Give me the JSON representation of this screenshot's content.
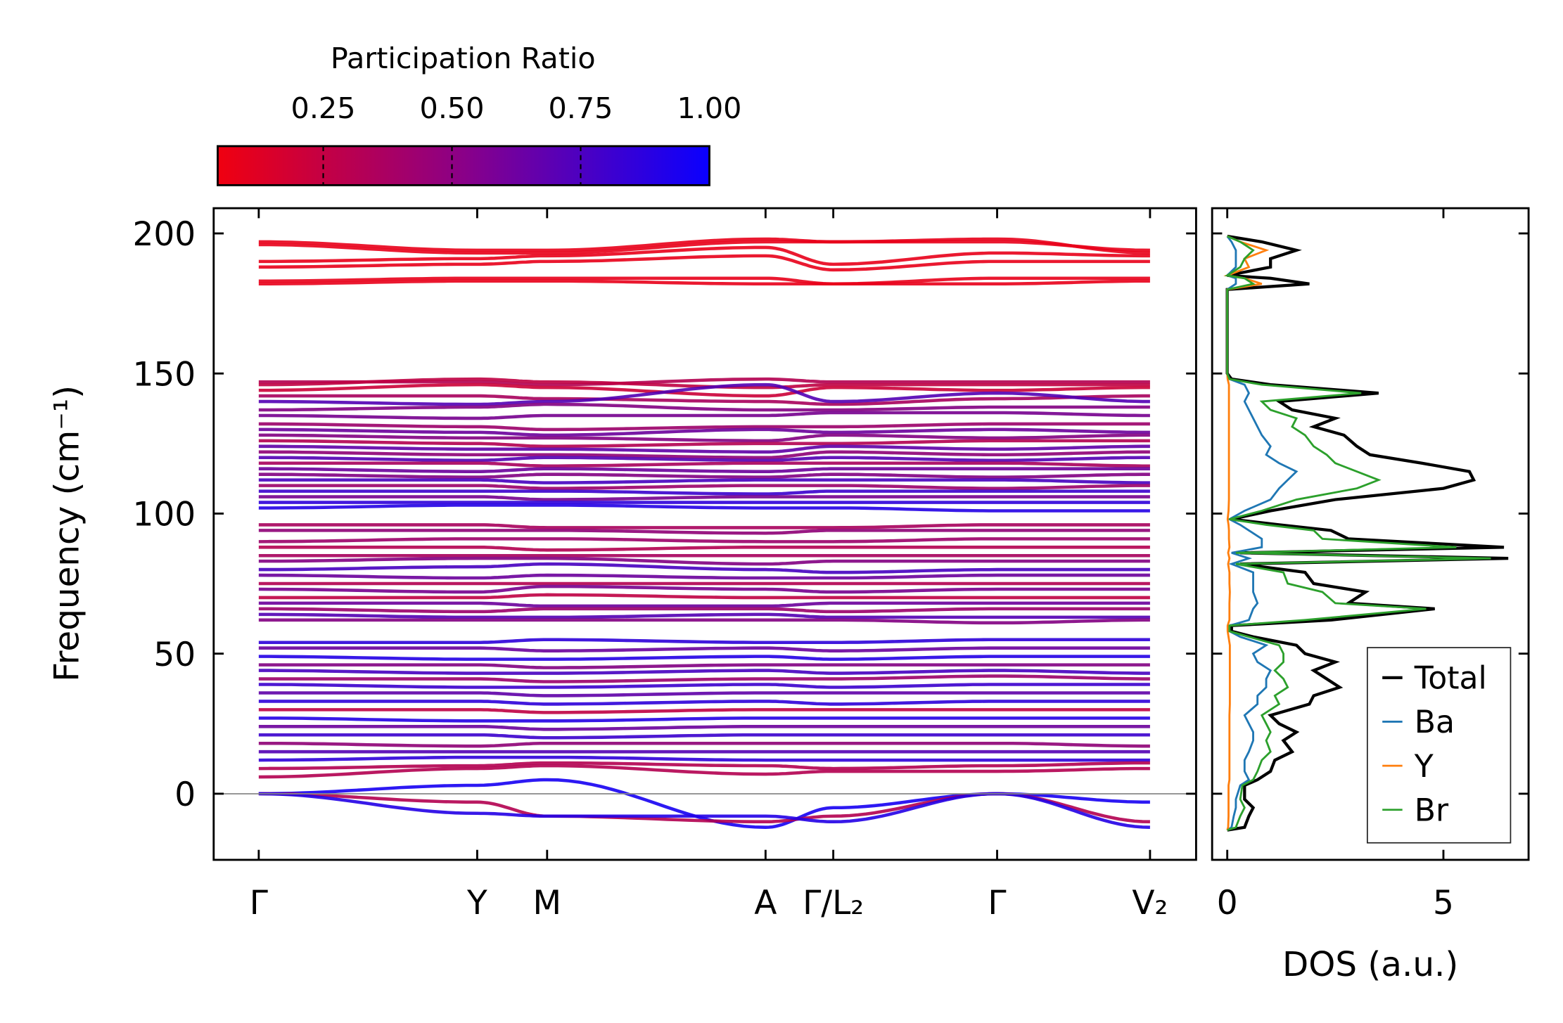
{
  "chart_data": [
    {
      "type": "line",
      "title": "",
      "xlabel": "",
      "ylabel": "Frequency (cm⁻¹)",
      "ylim": [
        -23.6,
        209
      ],
      "yticks": [
        "0",
        "50",
        "100",
        "150",
        "200"
      ],
      "ytick_values": [
        0,
        50,
        100,
        150,
        200
      ],
      "kpoints": [
        "Γ",
        "Y",
        "M",
        "A",
        "Γ/L₂",
        "Γ",
        "V₂"
      ],
      "k_distance": [
        0,
        1.0,
        1.32,
        2.32,
        2.63,
        3.38,
        4.08
      ],
      "colorbar": {
        "title": "Participation Ratio",
        "range": [
          0.045,
          1.0
        ],
        "ticks": [
          "0.25",
          "0.50",
          "0.75",
          "1.00"
        ],
        "tick_values": [
          0.25,
          0.5,
          0.75,
          1.0
        ],
        "low_color": "#f00010",
        "high_color": "#0a00ff"
      },
      "bands_format": "frequencies at each k-point, last value = participation ratio",
      "bands": [
        [
          182,
          183,
          183,
          182,
          182,
          182,
          183,
          0.08
        ],
        [
          183,
          184,
          184,
          184,
          182,
          184,
          184,
          0.08
        ],
        [
          188,
          189,
          190,
          192,
          187,
          190,
          190,
          0.08
        ],
        [
          190,
          191,
          192,
          195,
          189,
          193,
          192,
          0.08
        ],
        [
          196,
          193,
          193,
          197,
          197,
          198,
          193,
          0.08
        ],
        [
          197,
          194,
          194,
          198,
          197,
          197,
          194,
          0.08
        ],
        [
          147,
          147,
          146,
          148,
          147,
          147,
          147,
          0.3
        ],
        [
          146,
          148,
          147,
          145,
          146,
          146,
          146,
          0.25
        ],
        [
          144,
          146,
          145,
          142,
          145,
          144,
          145,
          0.2
        ],
        [
          142,
          142,
          141,
          140,
          139,
          141,
          142,
          0.35
        ],
        [
          140,
          139,
          140,
          146,
          140,
          143,
          140,
          0.7
        ],
        [
          137,
          138,
          139,
          137,
          137,
          138,
          138,
          0.5
        ],
        [
          135,
          134,
          135,
          135,
          136,
          136,
          135,
          0.55
        ],
        [
          132,
          131,
          130,
          131,
          131,
          132,
          132,
          0.4
        ],
        [
          130,
          129,
          128,
          130,
          129,
          130,
          129,
          0.6
        ],
        [
          128,
          127,
          127,
          126,
          128,
          127,
          128,
          0.5
        ],
        [
          126,
          125,
          124,
          125,
          125,
          126,
          126,
          0.3
        ],
        [
          124,
          123,
          123,
          122,
          124,
          123,
          124,
          0.65
        ],
        [
          122,
          121,
          121,
          120,
          122,
          121,
          122,
          0.45
        ],
        [
          120,
          119,
          120,
          119,
          120,
          119,
          120,
          0.7
        ],
        [
          118,
          118,
          117,
          118,
          118,
          118,
          117,
          0.35
        ],
        [
          116,
          115,
          116,
          115,
          116,
          116,
          116,
          0.6
        ],
        [
          114,
          113,
          114,
          113,
          114,
          113,
          114,
          0.5
        ],
        [
          112,
          112,
          111,
          112,
          112,
          112,
          111,
          0.75
        ],
        [
          110,
          110,
          109,
          110,
          110,
          109,
          110,
          0.4
        ],
        [
          108,
          108,
          108,
          107,
          108,
          108,
          108,
          0.8
        ],
        [
          106,
          106,
          105,
          106,
          106,
          106,
          106,
          0.55
        ],
        [
          104,
          104,
          104,
          104,
          104,
          104,
          104,
          0.85
        ],
        [
          102,
          103,
          103,
          102,
          102,
          101,
          101,
          0.9
        ],
        [
          96,
          96,
          95,
          95,
          95,
          96,
          96,
          0.35
        ],
        [
          94,
          94,
          94,
          93,
          94,
          94,
          94,
          0.45
        ],
        [
          90,
          91,
          91,
          90,
          90,
          91,
          91,
          0.4
        ],
        [
          88,
          88,
          87,
          88,
          88,
          88,
          88,
          0.3
        ],
        [
          85,
          85,
          85,
          85,
          85,
          85,
          85,
          0.35
        ],
        [
          83,
          84,
          84,
          82,
          83,
          83,
          83,
          0.5
        ],
        [
          80,
          81,
          82,
          80,
          79,
          80,
          80,
          0.75
        ],
        [
          78,
          77,
          78,
          77,
          77,
          78,
          78,
          0.6
        ],
        [
          75,
          75,
          75,
          75,
          75,
          75,
          75,
          0.3
        ],
        [
          73,
          72,
          74,
          73,
          72,
          73,
          73,
          0.55
        ],
        [
          70,
          70,
          71,
          70,
          70,
          70,
          70,
          0.25
        ],
        [
          68,
          68,
          67,
          67,
          68,
          68,
          68,
          0.6
        ],
        [
          66,
          65,
          66,
          66,
          65,
          66,
          66,
          0.4
        ],
        [
          64,
          63,
          63,
          64,
          63,
          63,
          63,
          0.7
        ],
        [
          62,
          62,
          62,
          62,
          62,
          61,
          62,
          0.5
        ],
        [
          54,
          54,
          55,
          54,
          54,
          55,
          55,
          0.85
        ],
        [
          52,
          52,
          51,
          52,
          51,
          52,
          52,
          0.6
        ],
        [
          49,
          48,
          48,
          49,
          48,
          49,
          49,
          0.9
        ],
        [
          46,
          46,
          45,
          46,
          46,
          46,
          46,
          0.5
        ],
        [
          44,
          43,
          43,
          44,
          43,
          44,
          43,
          0.75
        ],
        [
          41,
          41,
          40,
          41,
          41,
          42,
          41,
          0.4
        ],
        [
          39,
          38,
          38,
          39,
          38,
          39,
          39,
          0.8
        ],
        [
          36,
          36,
          35,
          36,
          36,
          36,
          36,
          0.65
        ],
        [
          33,
          33,
          32,
          33,
          32,
          33,
          33,
          0.85
        ],
        [
          30,
          30,
          29,
          30,
          30,
          30,
          30,
          0.25
        ],
        [
          27,
          26,
          26,
          27,
          27,
          27,
          27,
          0.9
        ],
        [
          24,
          24,
          23,
          24,
          24,
          24,
          24,
          0.6
        ],
        [
          21,
          21,
          20,
          21,
          21,
          21,
          21,
          0.8
        ],
        [
          18,
          17,
          18,
          18,
          18,
          18,
          17,
          0.45
        ],
        [
          15,
          15,
          15,
          15,
          15,
          15,
          15,
          0.7
        ],
        [
          12,
          13,
          13,
          12,
          12,
          12,
          12,
          0.85
        ],
        [
          9,
          10,
          11,
          10,
          9,
          10,
          11,
          0.3
        ],
        [
          6,
          9,
          10,
          7,
          8,
          8,
          9,
          0.3
        ],
        [
          0,
          3,
          5,
          -12,
          -5,
          0,
          -3,
          0.95
        ],
        [
          0,
          -3,
          -8,
          -10,
          -8,
          0,
          -10,
          0.3
        ],
        [
          0,
          -7,
          -8,
          -8,
          -10,
          0,
          -12,
          0.9
        ]
      ]
    },
    {
      "type": "line",
      "xlabel": "DOS (a.u.)",
      "ylabel": "",
      "xlim": [
        -0.35,
        6.97
      ],
      "ylim": [
        -23.6,
        209
      ],
      "xticks": [
        "0",
        "5"
      ],
      "xtick_values": [
        0,
        5
      ],
      "legend_position": "lower-right",
      "frequency": [
        -13,
        -12,
        -8,
        -5,
        -2,
        3,
        5,
        8,
        12,
        15,
        19,
        22,
        25,
        28,
        32,
        35,
        38,
        41,
        44,
        47,
        50,
        53,
        56,
        58,
        60,
        62,
        66,
        68,
        72,
        75,
        79,
        82,
        84,
        86,
        88,
        91,
        94,
        96,
        98,
        101,
        105,
        109,
        112,
        115,
        118,
        121,
        124,
        128,
        131,
        134,
        137,
        140,
        143,
        146,
        148,
        150,
        180,
        182,
        184,
        185,
        188,
        191,
        194,
        197,
        199
      ],
      "series": [
        {
          "name": "Total",
          "color": "#000000",
          "values": [
            0,
            0.4,
            0.5,
            0.6,
            0.4,
            0.4,
            0.7,
            1.0,
            1.1,
            1.5,
            1.3,
            1.6,
            1.2,
            1.0,
            1.9,
            2.0,
            2.6,
            2.3,
            2.0,
            2.5,
            1.8,
            1.6,
            0.6,
            0.1,
            0.1,
            2.4,
            4.8,
            2.8,
            3.2,
            2.0,
            1.8,
            0.3,
            6.5,
            0.3,
            6.4,
            2.8,
            2.4,
            1.2,
            0.1,
            1.0,
            2.5,
            5.0,
            5.7,
            5.6,
            4.5,
            3.3,
            3.0,
            2.7,
            2.0,
            2.5,
            1.5,
            1.2,
            3.5,
            1.0,
            0.1,
            0,
            0,
            1.9,
            1.0,
            0,
            1.0,
            1.0,
            1.6,
            0.8,
            0
          ]
        },
        {
          "name": "Ba",
          "color": "#1f77b4",
          "values": [
            0,
            0.1,
            0.15,
            0.2,
            0.2,
            0.3,
            0.5,
            0.4,
            0.4,
            0.5,
            0.6,
            0.6,
            0.5,
            0.4,
            0.7,
            0.7,
            0.9,
            0.9,
            1.0,
            0.7,
            0.6,
            0.9,
            0.3,
            0.05,
            0.05,
            0.5,
            0.6,
            0.7,
            0.6,
            0.6,
            0.6,
            0.1,
            0.5,
            0.1,
            0.8,
            0.8,
            0.5,
            0.3,
            0.05,
            0.4,
            1.0,
            1.2,
            1.4,
            1.6,
            1.2,
            0.9,
            1.0,
            0.8,
            0.7,
            0.6,
            0.5,
            0.4,
            0.5,
            0.4,
            0.05,
            0,
            0,
            0.2,
            0.2,
            0,
            0.2,
            0.2,
            0.2,
            0.1,
            0
          ]
        },
        {
          "name": "Y",
          "color": "#ff7f0e",
          "values": [
            0,
            0.02,
            0.03,
            0.03,
            0.03,
            0.03,
            0.05,
            0.05,
            0.05,
            0.05,
            0.05,
            0.05,
            0.05,
            0.05,
            0.06,
            0.06,
            0.06,
            0.06,
            0.06,
            0.06,
            0.06,
            0.06,
            0.03,
            0.01,
            0.01,
            0.05,
            0.05,
            0.05,
            0.06,
            0.05,
            0.05,
            0.02,
            0.05,
            0.02,
            0.05,
            0.04,
            0.04,
            0.03,
            0.01,
            0.03,
            0.04,
            0.04,
            0.04,
            0.04,
            0.04,
            0.04,
            0.04,
            0.04,
            0.04,
            0.04,
            0.04,
            0.04,
            0.04,
            0.04,
            0.01,
            0,
            0,
            0.8,
            0.4,
            0,
            0.5,
            0.4,
            0.9,
            0.3,
            0
          ]
        },
        {
          "name": "Br",
          "color": "#2ca02c",
          "values": [
            0,
            0.2,
            0.3,
            0.4,
            0.3,
            0.35,
            0.6,
            0.7,
            0.8,
            1.0,
            0.9,
            1.0,
            0.9,
            0.8,
            1.2,
            1.1,
            1.4,
            1.3,
            1.1,
            1.3,
            1.3,
            1.2,
            0.5,
            0.05,
            0.05,
            1.8,
            4.6,
            2.5,
            2.2,
            1.4,
            1.3,
            0.2,
            6.1,
            0.2,
            5.3,
            2.2,
            2.0,
            0.9,
            0.05,
            0.8,
            1.6,
            3.0,
            3.5,
            3.0,
            2.5,
            2.3,
            2.0,
            1.8,
            1.5,
            1.6,
            1.0,
            0.8,
            3.1,
            0.8,
            0.05,
            0,
            0,
            0.6,
            0.4,
            0,
            0.3,
            0.4,
            0.6,
            0.3,
            0
          ]
        }
      ]
    }
  ]
}
